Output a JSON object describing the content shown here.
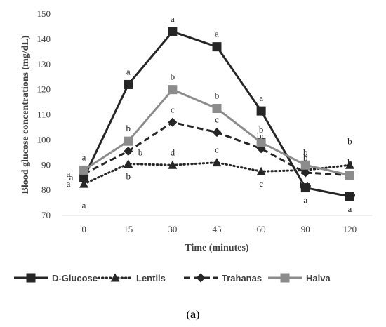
{
  "chart_data": {
    "type": "line",
    "xlabel": "Time (minutes)",
    "ylabel": "Blood glucose concentrations (mg/dL)",
    "categories": [
      "0",
      "15",
      "30",
      "45",
      "60",
      "90",
      "120"
    ],
    "ylim": [
      70,
      150
    ],
    "yticks": [
      70,
      80,
      90,
      100,
      110,
      120,
      130,
      140,
      150
    ],
    "grid": false,
    "legend_position": "bottom",
    "series": [
      {
        "name": "D-Glucose",
        "color": "#262626",
        "line_style": "solid",
        "marker": "square",
        "values": [
          85,
          122,
          143,
          137,
          111.5,
          81,
          77.5
        ],
        "labels": [
          "a",
          "a",
          "a",
          "a",
          "a",
          "a",
          "a"
        ]
      },
      {
        "name": "Lentils",
        "color": "#262626",
        "line_style": "dotted",
        "marker": "triangle",
        "values": [
          82.5,
          90.5,
          90,
          91,
          87.5,
          88,
          90
        ],
        "labels": [
          "a",
          "b",
          "d",
          "c",
          "c",
          "b,b",
          "b"
        ]
      },
      {
        "name": "Trahanas",
        "color": "#262626",
        "line_style": "dashed",
        "marker": "diamond",
        "values": [
          86.5,
          95.5,
          107,
          103,
          96.5,
          87,
          86
        ],
        "labels": [
          "a",
          "b",
          "c",
          "c",
          "bc",
          "b",
          "b,b"
        ]
      },
      {
        "name": "Halva",
        "color": "#8c8c8c",
        "line_style": "solid",
        "marker": "square",
        "values": [
          88,
          99.5,
          120,
          112.5,
          99,
          90,
          86
        ],
        "labels": [
          "a",
          "b",
          "b",
          "b",
          "b",
          "b",
          "b"
        ]
      }
    ]
  },
  "caption": {
    "open": "(",
    "letter": "a",
    "close": ")"
  }
}
